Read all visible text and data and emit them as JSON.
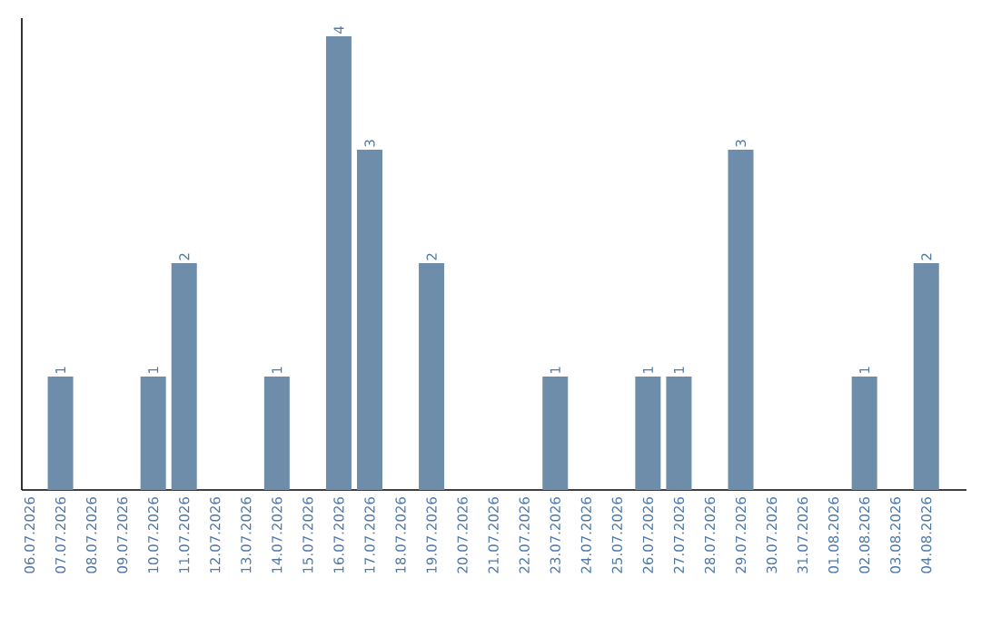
{
  "chart_data": {
    "type": "bar",
    "categories": [
      "06.07.2026",
      "07.07.2026",
      "08.07.2026",
      "09.07.2026",
      "10.07.2026",
      "11.07.2026",
      "12.07.2026",
      "13.07.2026",
      "14.07.2026",
      "15.07.2026",
      "16.07.2026",
      "17.07.2026",
      "18.07.2026",
      "19.07.2026",
      "20.07.2026",
      "21.07.2026",
      "22.07.2026",
      "23.07.2026",
      "24.07.2026",
      "25.07.2026",
      "26.07.2026",
      "27.07.2026",
      "28.07.2026",
      "29.07.2026",
      "30.07.2026",
      "31.07.2026",
      "01.08.2026",
      "02.08.2026",
      "03.08.2026",
      "04.08.2026"
    ],
    "values": [
      0,
      1,
      0,
      0,
      1,
      2,
      0,
      0,
      1,
      0,
      4,
      3,
      0,
      2,
      0,
      0,
      0,
      1,
      0,
      0,
      1,
      1,
      0,
      3,
      0,
      0,
      0,
      1,
      0,
      2
    ],
    "value_labels": [
      null,
      "1",
      null,
      null,
      "1",
      "2",
      null,
      null,
      "1",
      null,
      "4",
      "3",
      null,
      "2",
      null,
      null,
      null,
      "1",
      null,
      null,
      "1",
      "1",
      null,
      "3",
      null,
      null,
      null,
      "1",
      null,
      "2"
    ],
    "color": "#6d8dab",
    "tick_labels": "x",
    "grid": false
  }
}
